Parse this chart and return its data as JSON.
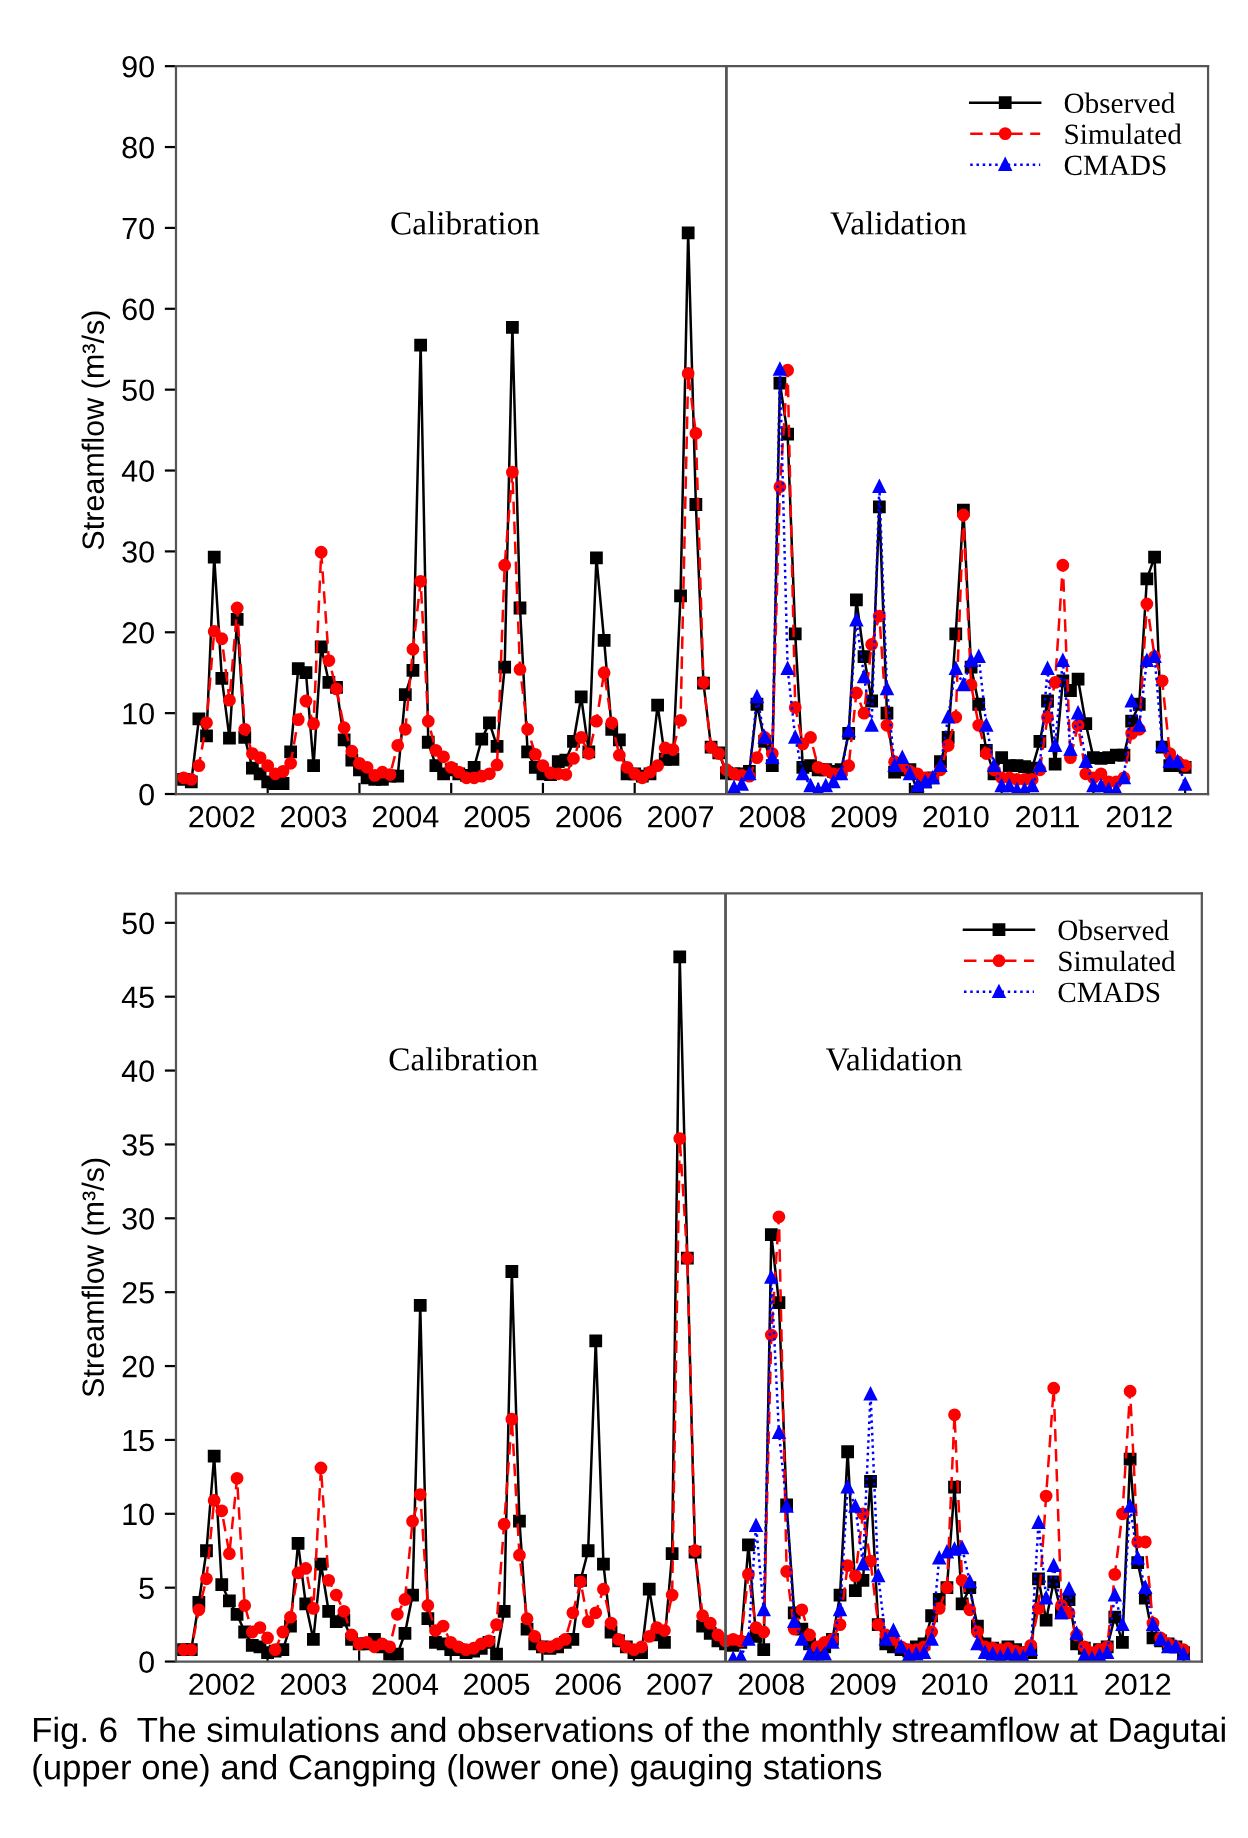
{
  "chart_data": [
    {
      "type": "line",
      "ylabel": "Streamflow (m³/s)",
      "legend": "top right",
      "xlim": [
        2002,
        2013.25
      ],
      "ylim": [
        0,
        90
      ],
      "yticks": [
        0,
        10,
        20,
        30,
        40,
        50,
        60,
        70,
        80,
        90
      ],
      "xticks": [
        {
          "value": 2002.5,
          "label": "2002"
        },
        {
          "value": 2003.5,
          "label": "2003"
        },
        {
          "value": 2004.5,
          "label": "2004"
        },
        {
          "value": 2005.5,
          "label": "2005"
        },
        {
          "value": 2006.5,
          "label": "2006"
        },
        {
          "value": 2007.5,
          "label": "2007"
        },
        {
          "value": 2008.5,
          "label": "2008"
        },
        {
          "value": 2009.5,
          "label": "2009"
        },
        {
          "value": 2010.5,
          "label": "2010"
        },
        {
          "value": 2011.5,
          "label": "2011"
        },
        {
          "value": 2012.5,
          "label": "2012"
        },
        {
          "value": 2003,
          "label": null
        },
        {
          "value": 2004,
          "label": null
        },
        {
          "value": 2005,
          "label": null
        },
        {
          "value": 2006,
          "label": null
        },
        {
          "value": 2007,
          "label": null
        },
        {
          "value": 2008,
          "label": null
        },
        {
          "value": 2009,
          "label": null
        },
        {
          "value": 2010,
          "label": null
        },
        {
          "value": 2011,
          "label": null
        },
        {
          "value": 2012,
          "label": null
        },
        {
          "value": 2013,
          "label": null
        }
      ],
      "ref_lines": [
        {
          "axis": "x",
          "value": 2008,
          "color": "#555555"
        }
      ],
      "annotations": [
        "Calibration",
        "Validation"
      ],
      "x": [
        2002.083,
        2002.167,
        2002.25,
        2002.333,
        2002.417,
        2002.5,
        2002.583,
        2002.667,
        2002.75,
        2002.833,
        2002.917,
        2003,
        2003.083,
        2003.167,
        2003.25,
        2003.333,
        2003.417,
        2003.5,
        2003.583,
        2003.667,
        2003.75,
        2003.833,
        2003.917,
        2004,
        2004.083,
        2004.167,
        2004.25,
        2004.333,
        2004.417,
        2004.5,
        2004.583,
        2004.667,
        2004.75,
        2004.833,
        2004.917,
        2005,
        2005.083,
        2005.167,
        2005.25,
        2005.333,
        2005.417,
        2005.5,
        2005.583,
        2005.667,
        2005.75,
        2005.833,
        2005.917,
        2006,
        2006.083,
        2006.167,
        2006.25,
        2006.333,
        2006.417,
        2006.5,
        2006.583,
        2006.667,
        2006.75,
        2006.833,
        2006.917,
        2007,
        2007.083,
        2007.167,
        2007.25,
        2007.333,
        2007.417,
        2007.5,
        2007.583,
        2007.667,
        2007.75,
        2007.833,
        2007.917,
        2008,
        2008.083,
        2008.167,
        2008.25,
        2008.333,
        2008.417,
        2008.5,
        2008.583,
        2008.667,
        2008.75,
        2008.833,
        2008.917,
        2009,
        2009.083,
        2009.167,
        2009.25,
        2009.333,
        2009.417,
        2009.5,
        2009.583,
        2009.667,
        2009.75,
        2009.833,
        2009.917,
        2010,
        2010.083,
        2010.167,
        2010.25,
        2010.333,
        2010.417,
        2010.5,
        2010.583,
        2010.667,
        2010.75,
        2010.833,
        2010.917,
        2011,
        2011.083,
        2011.167,
        2011.25,
        2011.333,
        2011.417,
        2011.5,
        2011.583,
        2011.667,
        2011.75,
        2011.833,
        2011.917,
        2012,
        2012.083,
        2012.167,
        2012.25,
        2012.333,
        2012.417,
        2012.5,
        2012.583,
        2012.667,
        2012.75,
        2012.833,
        2012.917,
        2013
      ],
      "series": [
        {
          "name": "Observed",
          "color": "#000000",
          "marker": "square",
          "line_style": "solid",
          "values": [
            1.8,
            1.5,
            9.3,
            7.2,
            29.3,
            14.3,
            6.9,
            21.6,
            7.0,
            3.2,
            2.5,
            1.5,
            1.3,
            1.3,
            5.2,
            15.5,
            15.0,
            3.5,
            18.2,
            13.8,
            13.2,
            6.7,
            4.2,
            3.0,
            2.0,
            1.8,
            1.8,
            2.2,
            2.2,
            12.3,
            15.3,
            55.5,
            6.4,
            3.5,
            2.5,
            3.0,
            2.5,
            2.3,
            3.3,
            6.8,
            8.8,
            5.9,
            15.7,
            57.7,
            23.0,
            5.2,
            3.3,
            2.5,
            2.4,
            4.0,
            4.2,
            6.5,
            12.0,
            5.2,
            29.2,
            19.0,
            8.0,
            6.7,
            2.5,
            2.5,
            2.2,
            2.5,
            11.0,
            4.3,
            4.3,
            24.5,
            69.4,
            35.8,
            13.7,
            5.8,
            5.1,
            2.6,
            2.5,
            2.5,
            2.8,
            11.1,
            6.5,
            3.5,
            50.8,
            44.5,
            19.8,
            3.3,
            3.5,
            3.0,
            3.0,
            2.8,
            3.0,
            7.5,
            24.0,
            17.0,
            11.5,
            35.5,
            10.0,
            2.7,
            3.0,
            3.0,
            0.3,
            1.5,
            2.0,
            4.0,
            7.0,
            19.8,
            35.1,
            15.7,
            11.1,
            5.4,
            2.5,
            4.5,
            3.5,
            3.5,
            3.4,
            3.2,
            6.5,
            11.5,
            3.7,
            14.0,
            12.8,
            14.2,
            8.7,
            4.5,
            4.4,
            4.5,
            4.8,
            4.8,
            9.0,
            11.1,
            26.6,
            29.3,
            5.8,
            3.5,
            3.5,
            3.3
          ]
        },
        {
          "name": "Simulated",
          "color": "#ff0000",
          "marker": "circle",
          "line_style": "dashed",
          "values": [
            2.0,
            1.8,
            3.5,
            8.8,
            20.1,
            19.2,
            11.6,
            23.0,
            8.0,
            5.0,
            4.5,
            3.5,
            2.5,
            2.8,
            3.8,
            9.2,
            11.5,
            8.7,
            29.9,
            16.5,
            13.0,
            8.2,
            5.3,
            3.8,
            3.3,
            2.3,
            2.7,
            2.4,
            6.0,
            8.0,
            17.9,
            26.3,
            9.0,
            5.4,
            4.6,
            3.3,
            2.7,
            2.0,
            2.0,
            2.2,
            2.5,
            3.6,
            28.3,
            39.8,
            15.4,
            8.0,
            4.9,
            3.5,
            2.6,
            2.5,
            2.4,
            4.4,
            7.0,
            5.0,
            9.0,
            15.0,
            8.8,
            4.8,
            3.3,
            2.5,
            2.0,
            2.7,
            3.5,
            5.7,
            5.5,
            9.1,
            52.0,
            44.6,
            13.8,
            5.8,
            5.0,
            3.0,
            2.5,
            2.3,
            2.2,
            4.5,
            7.0,
            5.0,
            38.0,
            52.4,
            10.7,
            6.2,
            7.0,
            3.3,
            3.0,
            2.5,
            2.5,
            3.5,
            12.5,
            10.0,
            18.5,
            22.0,
            8.5,
            4.0,
            3.5,
            2.8,
            2.5,
            2.0,
            2.0,
            3.0,
            6.0,
            9.5,
            34.5,
            13.5,
            8.5,
            5.0,
            3.0,
            2.0,
            2.0,
            1.8,
            1.8,
            1.8,
            3.0,
            9.5,
            13.8,
            28.3,
            4.5,
            8.5,
            2.5,
            2.0,
            2.5,
            1.5,
            1.5,
            2.0,
            7.5,
            8.0,
            23.5,
            17.0,
            14.0,
            5.0,
            4.0,
            3.5
          ]
        },
        {
          "name": "CMADS",
          "color": "#0000ff",
          "marker": "triangle",
          "line_style": "dotted",
          "x": [
            2008.083,
            2008.167,
            2008.25,
            2008.333,
            2008.417,
            2008.5,
            2008.583,
            2008.667,
            2008.75,
            2008.833,
            2008.917,
            2009,
            2009.083,
            2009.167,
            2009.25,
            2009.333,
            2009.417,
            2009.5,
            2009.583,
            2009.667,
            2009.75,
            2009.833,
            2009.917,
            2010,
            2010.083,
            2010.167,
            2010.25,
            2010.333,
            2010.417,
            2010.5,
            2010.583,
            2010.667,
            2010.75,
            2010.833,
            2010.917,
            2011,
            2011.083,
            2011.167,
            2011.25,
            2011.333,
            2011.417,
            2011.5,
            2011.583,
            2011.667,
            2011.75,
            2011.833,
            2011.917,
            2012,
            2012.083,
            2012.167,
            2012.25,
            2012.333,
            2012.417,
            2012.5,
            2012.583,
            2012.667,
            2012.75,
            2012.833,
            2012.917,
            2013
          ],
          "values": [
            0.8,
            1.2,
            2.5,
            12.0,
            7.0,
            4.5,
            52.5,
            15.5,
            7.0,
            2.5,
            1.0,
            0.5,
            1.0,
            1.5,
            2.5,
            7.8,
            21.5,
            14.5,
            8.5,
            38.0,
            13.0,
            3.5,
            4.5,
            2.5,
            1.0,
            1.5,
            2.0,
            3.5,
            9.5,
            15.5,
            13.5,
            16.5,
            17.0,
            8.5,
            3.5,
            1.0,
            1.0,
            0.5,
            0.5,
            1.0,
            3.5,
            15.5,
            6.0,
            16.5,
            5.5,
            10.0,
            4.0,
            1.0,
            1.0,
            0.5,
            0.5,
            2.0,
            11.5,
            8.5,
            16.5,
            17.0,
            6.0,
            4.0,
            4.0,
            1.2
          ]
        }
      ]
    },
    {
      "type": "line",
      "ylabel": "Streamflow (m³/s)",
      "legend": "top right",
      "xlim": [
        2002,
        2013.2
      ],
      "ylim": [
        0,
        52
      ],
      "yticks": [
        0,
        5,
        10,
        15,
        20,
        25,
        30,
        35,
        40,
        45,
        50
      ],
      "xticks": [
        {
          "value": 2002.5,
          "label": "2002"
        },
        {
          "value": 2003.5,
          "label": "2003"
        },
        {
          "value": 2004.5,
          "label": "2004"
        },
        {
          "value": 2005.5,
          "label": "2005"
        },
        {
          "value": 2006.5,
          "label": "2006"
        },
        {
          "value": 2007.5,
          "label": "2007"
        },
        {
          "value": 2008.5,
          "label": "2008"
        },
        {
          "value": 2009.5,
          "label": "2009"
        },
        {
          "value": 2010.5,
          "label": "2010"
        },
        {
          "value": 2011.5,
          "label": "2011"
        },
        {
          "value": 2012.5,
          "label": "2012"
        },
        {
          "value": 2003,
          "label": null
        },
        {
          "value": 2004,
          "label": null
        },
        {
          "value": 2005,
          "label": null
        },
        {
          "value": 2006,
          "label": null
        },
        {
          "value": 2007,
          "label": null
        },
        {
          "value": 2008,
          "label": null
        },
        {
          "value": 2009,
          "label": null
        },
        {
          "value": 2010,
          "label": null
        },
        {
          "value": 2011,
          "label": null
        },
        {
          "value": 2012,
          "label": null
        },
        {
          "value": 2013,
          "label": null
        }
      ],
      "ref_lines": [
        {
          "axis": "x",
          "value": 2008,
          "color": "#555555"
        }
      ],
      "annotations": [
        "Calibration",
        "Validation",
        "Fig. 6  The simulations and observations of the monthly streamflow at Dagutai (upper one) and Cangping (lower one) gauging stations"
      ],
      "x": [
        2002.083,
        2002.167,
        2002.25,
        2002.333,
        2002.417,
        2002.5,
        2002.583,
        2002.667,
        2002.75,
        2002.833,
        2002.917,
        2003,
        2003.083,
        2003.167,
        2003.25,
        2003.333,
        2003.417,
        2003.5,
        2003.583,
        2003.667,
        2003.75,
        2003.833,
        2003.917,
        2004,
        2004.083,
        2004.167,
        2004.25,
        2004.333,
        2004.417,
        2004.5,
        2004.583,
        2004.667,
        2004.75,
        2004.833,
        2004.917,
        2005,
        2005.083,
        2005.167,
        2005.25,
        2005.333,
        2005.417,
        2005.5,
        2005.583,
        2005.667,
        2005.75,
        2005.833,
        2005.917,
        2006,
        2006.083,
        2006.167,
        2006.25,
        2006.333,
        2006.417,
        2006.5,
        2006.583,
        2006.667,
        2006.75,
        2006.833,
        2006.917,
        2007,
        2007.083,
        2007.167,
        2007.25,
        2007.333,
        2007.417,
        2007.5,
        2007.583,
        2007.667,
        2007.75,
        2007.833,
        2007.917,
        2008,
        2008.083,
        2008.167,
        2008.25,
        2008.333,
        2008.417,
        2008.5,
        2008.583,
        2008.667,
        2008.75,
        2008.833,
        2008.917,
        2009,
        2009.083,
        2009.167,
        2009.25,
        2009.333,
        2009.417,
        2009.5,
        2009.583,
        2009.667,
        2009.75,
        2009.833,
        2009.917,
        2010,
        2010.083,
        2010.167,
        2010.25,
        2010.333,
        2010.417,
        2010.5,
        2010.583,
        2010.667,
        2010.75,
        2010.833,
        2010.917,
        2011,
        2011.083,
        2011.167,
        2011.25,
        2011.333,
        2011.417,
        2011.5,
        2011.583,
        2011.667,
        2011.75,
        2011.833,
        2011.917,
        2012,
        2012.083,
        2012.167,
        2012.25,
        2012.333,
        2012.417,
        2012.5,
        2012.583,
        2012.667,
        2012.75,
        2012.833,
        2012.917,
        2013
      ],
      "series": [
        {
          "name": "Observed",
          "color": "#000000",
          "marker": "square",
          "line_style": "solid",
          "values": [
            0.8,
            0.8,
            4.0,
            7.5,
            13.9,
            5.2,
            4.1,
            3.2,
            2.0,
            1.1,
            1.0,
            0.6,
            0.7,
            0.8,
            2.4,
            8.0,
            3.9,
            1.5,
            6.6,
            3.4,
            2.7,
            2.8,
            1.5,
            1.2,
            1.2,
            1.5,
            1.0,
            0.5,
            0.5,
            1.9,
            4.5,
            24.1,
            2.9,
            1.3,
            1.2,
            0.8,
            0.8,
            0.6,
            0.7,
            0.9,
            1.3,
            0.5,
            3.4,
            26.4,
            9.5,
            2.2,
            1.2,
            1.0,
            0.9,
            1.0,
            1.3,
            1.5,
            5.5,
            7.5,
            21.7,
            6.6,
            2.0,
            1.4,
            1.0,
            0.6,
            0.6,
            4.9,
            1.8,
            1.3,
            7.3,
            47.7,
            27.3,
            7.4,
            2.4,
            1.9,
            1.4,
            1.2,
            1.1,
            1.3,
            7.9,
            1.7,
            0.8,
            28.9,
            24.3,
            10.6,
            3.3,
            2.2,
            1.2,
            0.8,
            1.0,
            1.5,
            4.5,
            14.2,
            4.8,
            5.5,
            12.2,
            2.5,
            1.2,
            1.0,
            0.8,
            0.7,
            1.0,
            1.2,
            3.1,
            4.2,
            5.0,
            11.8,
            3.9,
            5.0,
            2.4,
            1.2,
            0.9,
            0.7,
            1.0,
            0.8,
            0.6,
            0.6,
            5.6,
            2.8,
            5.4,
            3.3,
            4.2,
            1.2,
            0.9,
            0.5,
            0.8,
            1.0,
            3.0,
            1.3,
            13.7,
            6.7,
            4.3,
            1.6,
            1.4,
            1.2,
            1.0,
            0.6
          ]
        },
        {
          "name": "Simulated",
          "color": "#ff0000",
          "marker": "circle",
          "line_style": "dashed",
          "values": [
            0.8,
            0.8,
            3.5,
            5.6,
            10.9,
            10.2,
            7.3,
            12.4,
            3.8,
            2.0,
            2.3,
            1.6,
            0.8,
            2.0,
            3.0,
            6.0,
            6.3,
            3.6,
            13.1,
            5.5,
            4.5,
            3.4,
            1.8,
            1.2,
            1.3,
            1.0,
            1.2,
            1.0,
            3.2,
            4.2,
            9.5,
            11.3,
            3.8,
            2.1,
            2.4,
            1.3,
            1.0,
            0.8,
            0.9,
            1.2,
            1.4,
            2.5,
            9.3,
            16.4,
            7.2,
            2.9,
            1.7,
            1.0,
            1.0,
            1.2,
            1.5,
            3.3,
            5.4,
            2.7,
            3.3,
            4.9,
            2.6,
            1.5,
            1.0,
            0.8,
            1.0,
            1.7,
            2.3,
            2.1,
            4.5,
            35.4,
            27.3,
            7.5,
            3.1,
            2.6,
            1.8,
            1.4,
            1.5,
            1.4,
            5.9,
            2.3,
            2.0,
            22.1,
            30.1,
            6.1,
            2.2,
            3.5,
            1.8,
            1.0,
            1.3,
            1.5,
            2.5,
            6.5,
            5.8,
            10.0,
            6.8,
            2.5,
            1.8,
            1.5,
            1.0,
            0.8,
            0.8,
            1.0,
            2.0,
            3.6,
            5.0,
            16.7,
            5.5,
            3.5,
            2.0,
            1.0,
            0.9,
            0.8,
            0.9,
            0.7,
            0.6,
            1.1,
            3.6,
            11.2,
            18.5,
            3.8,
            3.3,
            1.8,
            1.0,
            0.6,
            0.8,
            1.0,
            5.9,
            10.0,
            18.3,
            8.1,
            8.1,
            2.6,
            1.6,
            1.2,
            1.0,
            0.8
          ]
        },
        {
          "name": "CMADS",
          "color": "#0000ff",
          "marker": "triangle",
          "line_style": "dotted",
          "x": [
            2008.083,
            2008.167,
            2008.25,
            2008.333,
            2008.417,
            2008.5,
            2008.583,
            2008.667,
            2008.75,
            2008.833,
            2008.917,
            2009,
            2009.083,
            2009.167,
            2009.25,
            2009.333,
            2009.417,
            2009.5,
            2009.583,
            2009.667,
            2009.75,
            2009.833,
            2009.917,
            2010,
            2010.083,
            2010.167,
            2010.25,
            2010.333,
            2010.417,
            2010.5,
            2010.583,
            2010.667,
            2010.75,
            2010.833,
            2010.917,
            2011,
            2011.083,
            2011.167,
            2011.25,
            2011.333,
            2011.417,
            2011.5,
            2011.583,
            2011.667,
            2011.75,
            2011.833,
            2011.917,
            2012,
            2012.083,
            2012.167,
            2012.25,
            2012.333,
            2012.417,
            2012.5,
            2012.583,
            2012.667,
            2012.75,
            2012.833,
            2012.917,
            2013
          ],
          "values": [
            0.2,
            0.3,
            1.5,
            9.2,
            3.5,
            26.0,
            15.5,
            10.5,
            2.7,
            1.5,
            0.5,
            0.5,
            0.5,
            1.3,
            3.5,
            11.8,
            10.5,
            6.6,
            18.1,
            5.8,
            1.5,
            2.1,
            1.0,
            0.4,
            0.5,
            0.6,
            1.5,
            7.0,
            7.4,
            7.6,
            7.7,
            5.4,
            1.2,
            0.6,
            0.5,
            0.3,
            0.5,
            0.4,
            0.3,
            0.8,
            9.4,
            4.3,
            6.5,
            3.3,
            4.9,
            1.9,
            0.4,
            0.2,
            0.4,
            0.6,
            4.5,
            2.5,
            10.5,
            7.0,
            5.0,
            2.5,
            1.5,
            1.0,
            1.0,
            0.5
          ]
        }
      ]
    }
  ]
}
